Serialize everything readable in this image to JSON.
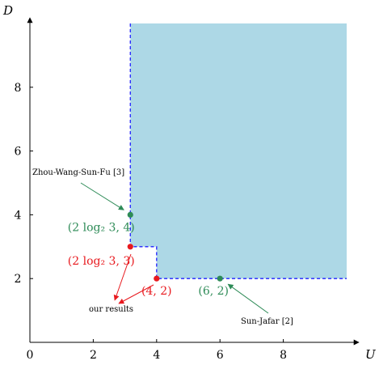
{
  "chart_data": {
    "type": "scatter",
    "title": "",
    "xlabel": "U",
    "ylabel": "D",
    "xlim": [
      0,
      10
    ],
    "ylim": [
      0,
      10
    ],
    "xticks": [
      "0",
      "2",
      "4",
      "6",
      "8"
    ],
    "yticks": [
      "2",
      "4",
      "6",
      "8"
    ],
    "grid": false,
    "region": {
      "fill": "#add8e6",
      "boundary_color": "#2020ff",
      "boundary_style": "dashed",
      "boundary": [
        [
          3.17,
          10
        ],
        [
          3.17,
          3
        ],
        [
          4,
          3
        ],
        [
          4,
          2
        ],
        [
          10,
          2
        ]
      ]
    },
    "points": [
      {
        "x": 3.17,
        "y": 4,
        "label": "(2 log₂ 3, 4)",
        "color": "#2e8b57"
      },
      {
        "x": 3.17,
        "y": 3,
        "label": "(2 log₂ 3, 3)",
        "color": "#e8191e"
      },
      {
        "x": 4,
        "y": 2,
        "label": "(4, 2)",
        "color": "#e8191e"
      },
      {
        "x": 6,
        "y": 2,
        "label": "(6, 2)",
        "color": "#2e8b57"
      }
    ],
    "annotations": [
      {
        "text": "Zhou-Wang-Sun-Fu [3]",
        "color": "#2e8b57",
        "points_to": [
          3.17,
          4
        ]
      },
      {
        "text": "our results",
        "color": "#e8191e",
        "points_to": [
          [
            3.17,
            3
          ],
          [
            4,
            2
          ]
        ]
      },
      {
        "text": "Sun-Jafar [2]",
        "color": "#2e8b57",
        "points_to": [
          6,
          2
        ]
      }
    ]
  }
}
